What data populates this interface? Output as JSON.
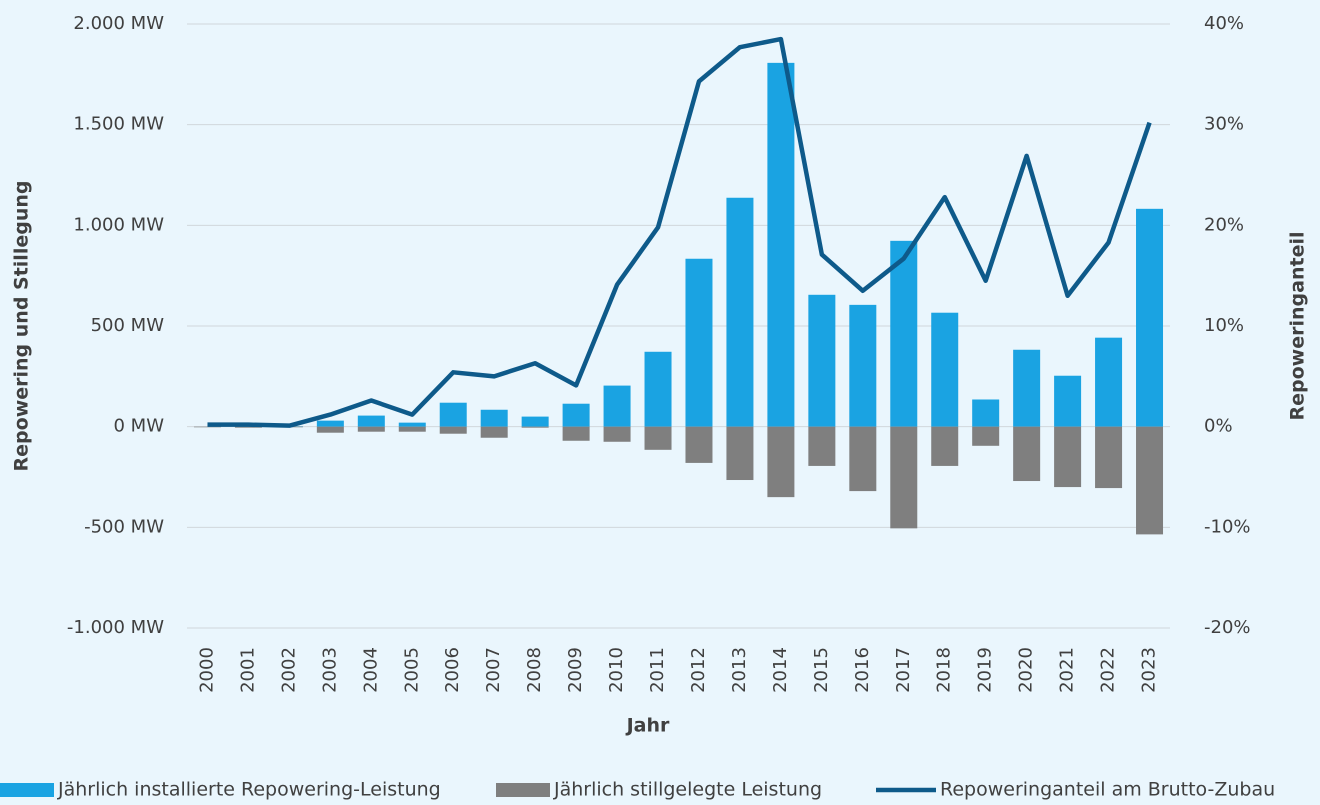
{
  "chart_data": {
    "type": "bar",
    "x_label": "Jahr",
    "y_label": "Repowering und Stillegung",
    "y2_label": "Repoweringanteil",
    "categories": [
      "2000",
      "2001",
      "2002",
      "2003",
      "2004",
      "2005",
      "2006",
      "2007",
      "2008",
      "2009",
      "2010",
      "2011",
      "2012",
      "2013",
      "2014",
      "2015",
      "2016",
      "2017",
      "2018",
      "2019",
      "2020",
      "2021",
      "2022",
      "2023"
    ],
    "series": [
      {
        "name": "Jährlich installierte Repowering-Leistung",
        "type": "bar",
        "color": "#1aa3e2",
        "values": [
          0,
          3,
          2,
          30,
          55,
          20,
          119,
          84,
          50,
          114,
          204,
          372,
          834,
          1137,
          1807,
          655,
          605,
          923,
          566,
          135,
          382,
          253,
          442,
          1082
        ]
      },
      {
        "name": "Jährlich stillgelegte Leistung",
        "type": "bar",
        "color": "#7f7f7f",
        "values": [
          -3,
          -5,
          -3,
          -30,
          -25,
          -25,
          -35,
          -55,
          -5,
          -70,
          -75,
          -115,
          -180,
          -265,
          -350,
          -195,
          -320,
          -505,
          -195,
          -95,
          -270,
          -300,
          -305,
          -535
        ]
      },
      {
        "name": "Repoweringanteil am Brutto-Zubau",
        "type": "line",
        "color": "#0e5a8a",
        "axis": "y2",
        "values": [
          0.2,
          0.2,
          0.1,
          1.2,
          2.6,
          1.2,
          5.4,
          5.0,
          6.3,
          4.1,
          14.1,
          19.8,
          34.3,
          37.7,
          38.5,
          17.1,
          13.5,
          16.7,
          22.8,
          14.5,
          26.9,
          13.0,
          18.3,
          30.2
        ]
      }
    ],
    "ylim": [
      -1000,
      2000
    ],
    "yticks": [
      {
        "value": -1000,
        "label": "-1.000 MW"
      },
      {
        "value": -500,
        "label": "-500 MW"
      },
      {
        "value": 0,
        "label": "0 MW"
      },
      {
        "value": 500,
        "label": "500 MW"
      },
      {
        "value": 1000,
        "label": "1.000 MW"
      },
      {
        "value": 1500,
        "label": "1.500 MW"
      },
      {
        "value": 2000,
        "label": "2.000 MW"
      }
    ],
    "y2lim": [
      -20,
      40
    ],
    "y2ticks": [
      {
        "value": -20,
        "label": "-20%"
      },
      {
        "value": -10,
        "label": "-10%"
      },
      {
        "value": 0,
        "label": "0%"
      },
      {
        "value": 10,
        "label": "10%"
      },
      {
        "value": 20,
        "label": "20%"
      },
      {
        "value": 30,
        "label": "30%"
      },
      {
        "value": 40,
        "label": "40%"
      }
    ],
    "grid": true,
    "legend": "bottom"
  }
}
